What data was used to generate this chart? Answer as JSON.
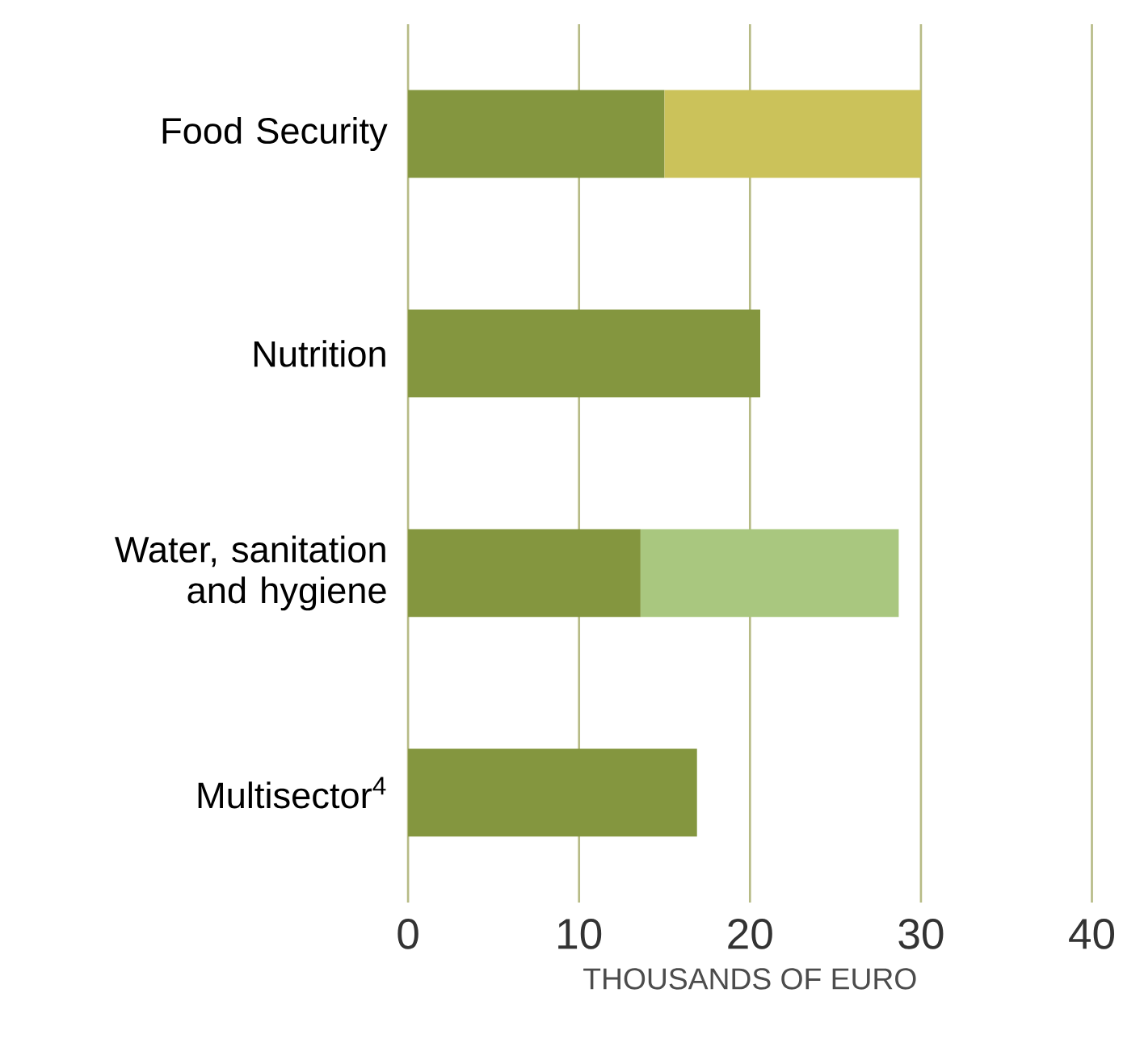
{
  "chart_data": {
    "type": "bar",
    "orientation": "horizontal",
    "stacked": true,
    "xlabel": "THOUSANDS OF EURO",
    "categories": [
      "Food Security",
      "Nutrition",
      "Water, sanitation and hygiene",
      "Multisector$^{4}$"
    ],
    "series": [
      {
        "color": "#84963f",
        "values": [
          15,
          20.6,
          13.6,
          16.9
        ]
      },
      {
        "color": "#cbc25a",
        "values": [
          15,
          null,
          null,
          null
        ]
      },
      {
        "color": "#a9c77f",
        "values": [
          null,
          null,
          15.1,
          null
        ]
      }
    ],
    "xlim": [
      0,
      40
    ],
    "xticks": [
      0,
      10,
      20,
      30,
      40
    ],
    "grid": "x"
  }
}
